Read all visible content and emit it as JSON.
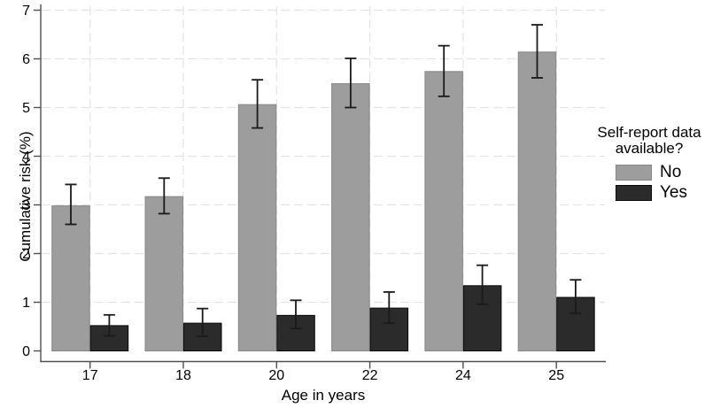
{
  "figure": {
    "background": "#ffffff"
  },
  "chart_data": {
    "type": "bar",
    "title": "",
    "xlabel": "Age in years",
    "ylabel": "Cumulative risk (%)",
    "categories": [
      "17",
      "18",
      "20",
      "22",
      "24",
      "25"
    ],
    "series": [
      {
        "name": "No",
        "color": "#9d9d9d",
        "border": "#878787",
        "values": [
          2.98,
          3.17,
          5.06,
          5.49,
          5.74,
          6.14
        ],
        "ci_low": [
          2.6,
          2.82,
          4.58,
          5.0,
          5.23,
          5.61
        ],
        "ci_high": [
          3.42,
          3.55,
          5.57,
          6.01,
          6.27,
          6.7
        ]
      },
      {
        "name": "Yes",
        "color": "#2b2b2b",
        "border": "#0a0a0a",
        "values": [
          0.52,
          0.57,
          0.73,
          0.88,
          1.34,
          1.1
        ],
        "ci_low": [
          0.31,
          0.3,
          0.46,
          0.57,
          0.96,
          0.77
        ],
        "ci_high": [
          0.74,
          0.87,
          1.04,
          1.21,
          1.76,
          1.46
        ]
      }
    ],
    "ylim": [
      0,
      7
    ],
    "yticks": [
      0,
      1,
      2,
      3,
      4,
      5,
      6,
      7
    ],
    "grid": "dashed light-gray, horizontal and vertical",
    "error_bars": true,
    "legend": {
      "title": "Self-report data available?",
      "position": "right",
      "items": [
        "No",
        "Yes"
      ]
    },
    "colors": {
      "gridline": "#e3e3e3",
      "axis": "#4f4f4f",
      "error_bar": "#1a1a1a",
      "text": "#000000"
    }
  }
}
